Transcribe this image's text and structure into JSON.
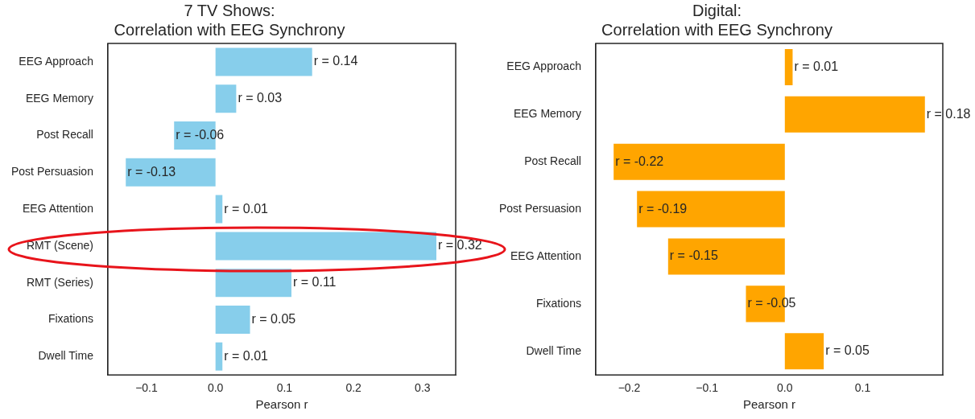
{
  "chart_data": [
    {
      "type": "bar",
      "orientation": "horizontal",
      "title": "7 TV Shows:\nCorrelation with EEG Synchrony",
      "xlabel": "Pearson r",
      "categories": [
        "EEG Approach",
        "EEG Memory",
        "Post Recall",
        "Post Persuasion",
        "EEG Attention",
        "RMT (Scene)",
        "RMT (Series)",
        "Fixations",
        "Dwell Time"
      ],
      "values": [
        0.14,
        0.03,
        -0.06,
        -0.13,
        0.01,
        0.32,
        0.11,
        0.05,
        0.01
      ],
      "color": "#87ceeb",
      "value_labels": [
        "r = 0.14",
        "r = 0.03",
        "r = -0.06",
        "r = -0.13",
        "r = 0.01",
        "r = 0.32",
        "r = 0.11",
        "r = 0.05",
        "r = 0.01"
      ],
      "xlim": [
        -0.156,
        0.348
      ],
      "xticks": [
        {
          "value": -0.1,
          "label": "−0.1"
        },
        {
          "value": 0,
          "label": "0.0"
        },
        {
          "value": 0.1,
          "label": "0.1"
        },
        {
          "value": 0.2,
          "label": "0.2"
        },
        {
          "value": 0.3,
          "label": "0.3"
        }
      ]
    },
    {
      "type": "bar",
      "orientation": "horizontal",
      "title": "Digital:\nCorrelation with EEG Synchrony",
      "xlabel": "Pearson r",
      "categories": [
        "EEG Approach",
        "EEG Memory",
        "Post Recall",
        "Post Persuasion",
        "EEG Attention",
        "Fixations",
        "Dwell Time"
      ],
      "values": [
        0.01,
        0.18,
        -0.22,
        -0.19,
        -0.15,
        -0.05,
        0.05
      ],
      "color": "#ffa500",
      "value_labels": [
        "r = 0.01",
        "r = 0.18",
        "r = -0.22",
        "r = -0.19",
        "r = -0.15",
        "r = -0.05",
        "r = 0.05"
      ],
      "xlim": [
        -0.243,
        0.203
      ],
      "xticks": [
        {
          "value": -0.2,
          "label": "−0.2"
        },
        {
          "value": -0.1,
          "label": "−0.1"
        },
        {
          "value": 0,
          "label": "0.0"
        },
        {
          "value": 0.1,
          "label": "0.1"
        }
      ]
    }
  ]
}
